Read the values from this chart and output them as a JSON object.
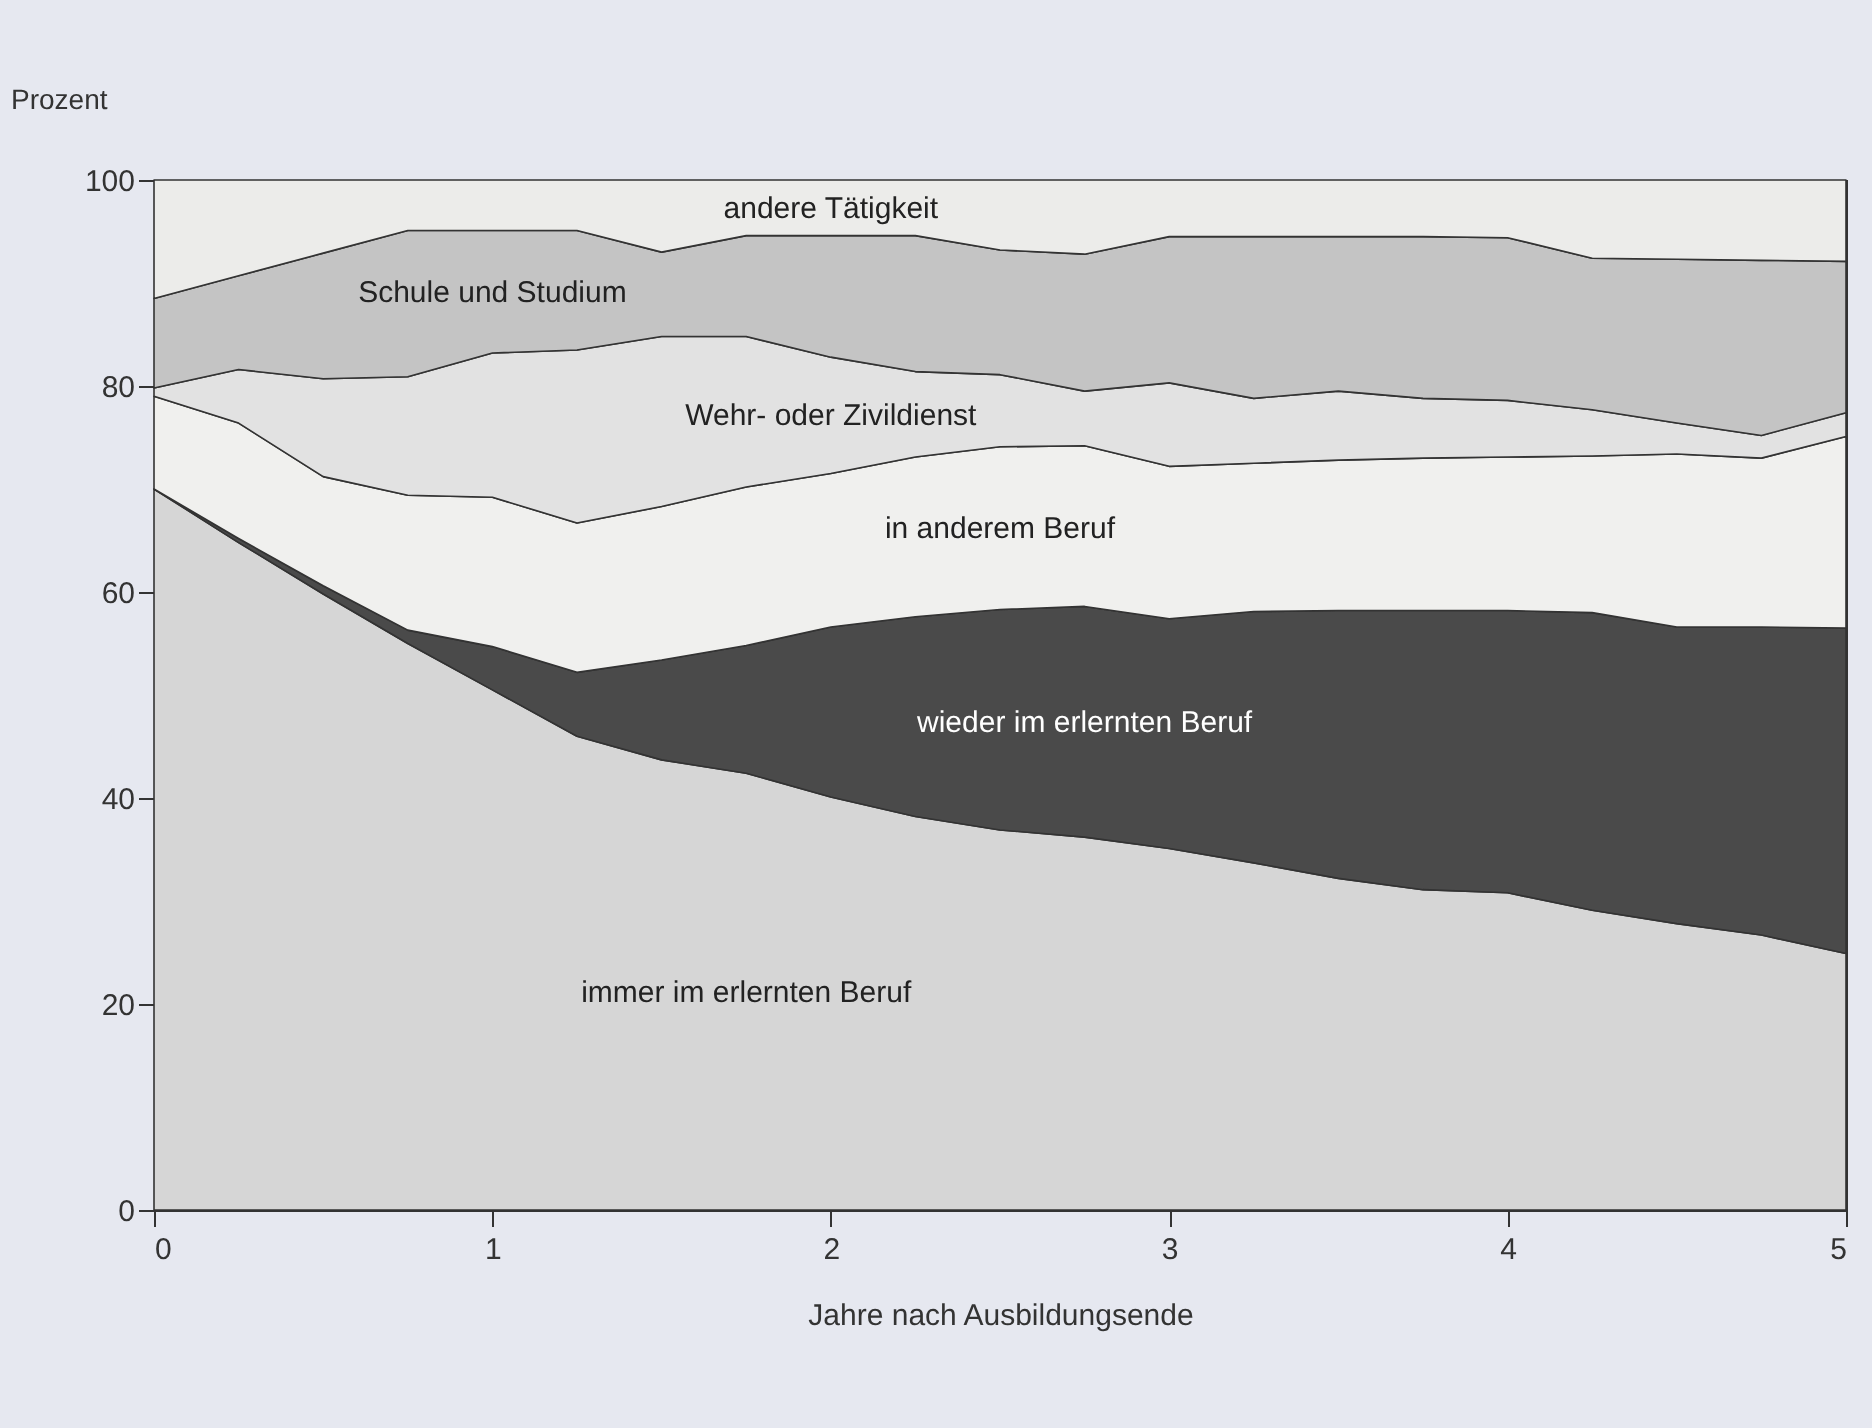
{
  "chart_data": {
    "type": "area",
    "stacked": true,
    "xlabel": "Jahre nach Ausbildungsende",
    "ylabel": "Prozent",
    "x": [
      0,
      0.25,
      0.5,
      0.75,
      1,
      1.25,
      1.5,
      1.75,
      2,
      2.25,
      2.5,
      2.75,
      3,
      3.25,
      3.5,
      3.75,
      4,
      4.25,
      4.5,
      4.75,
      5
    ],
    "xlim": [
      0,
      5
    ],
    "xticks": [
      0,
      1,
      2,
      3,
      4,
      5
    ],
    "ylim": [
      0,
      100
    ],
    "yticks": [
      0,
      20,
      40,
      60,
      80,
      100
    ],
    "legend": false,
    "series": [
      {
        "name": "immer im erlernten Beruf",
        "color": "#d6d6d6",
        "values": [
          70,
          64.8,
          59.8,
          55.0,
          50.5,
          46.0,
          43.7,
          42.4,
          40.1,
          38.2,
          36.9,
          36.2,
          35.1,
          33.7,
          32.2,
          31.1,
          30.8,
          29.1,
          27.8,
          26.7,
          24.9
        ]
      },
      {
        "name": "wieder im erlernten Beruf",
        "color": "#4a4a4a",
        "values": [
          0,
          0.4,
          0.8,
          1.3,
          4.2,
          6.2,
          9.7,
          12.4,
          16.5,
          19.4,
          21.4,
          22.4,
          22.3,
          24.4,
          26.0,
          27.1,
          27.4,
          28.9,
          28.8,
          29.9,
          31.6
        ]
      },
      {
        "name": "in anderem Beruf",
        "color": "#f0f0ee",
        "values": [
          9.0,
          11.2,
          10.6,
          13.1,
          14.5,
          14.5,
          14.9,
          15.4,
          14.9,
          15.5,
          15.8,
          15.6,
          14.8,
          14.4,
          14.6,
          14.8,
          14.9,
          15.2,
          16.8,
          16.4,
          18.6
        ]
      },
      {
        "name": "Wehr- oder Zivildienst",
        "color": "#e2e2e2",
        "values": [
          0.8,
          5.2,
          9.5,
          11.5,
          14.0,
          16.8,
          16.5,
          14.6,
          11.3,
          8.3,
          7.0,
          5.3,
          8.1,
          6.3,
          6.7,
          5.8,
          5.5,
          4.5,
          3.0,
          2.2,
          2.3
        ]
      },
      {
        "name": "Schule und Studium",
        "color": "#c4c4c4",
        "values": [
          8.7,
          9.1,
          12.2,
          14.2,
          11.9,
          11.6,
          8.2,
          9.8,
          11.8,
          13.2,
          12.1,
          13.3,
          14.2,
          15.7,
          15.0,
          15.7,
          15.8,
          14.7,
          15.9,
          17.0,
          14.7
        ]
      },
      {
        "name": "andere Tätigkeit",
        "color": "#ececea",
        "values": [
          11.5,
          9.3,
          7.1,
          4.9,
          4.9,
          4.9,
          7.0,
          5.4,
          5.4,
          5.4,
          6.8,
          7.2,
          5.5,
          5.5,
          5.5,
          5.5,
          5.6,
          7.6,
          7.7,
          7.8,
          7.9
        ]
      }
    ]
  }
}
